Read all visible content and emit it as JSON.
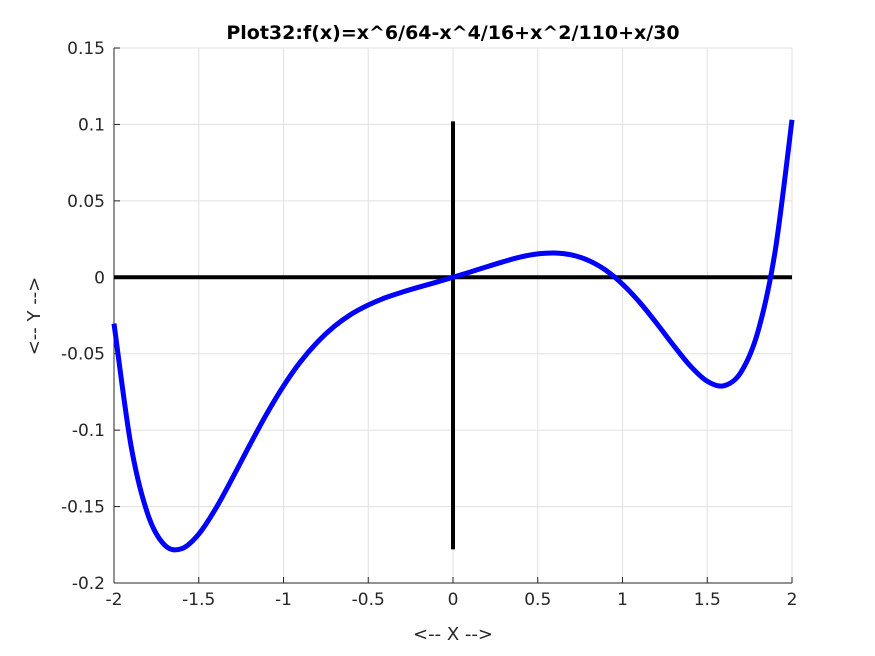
{
  "chart_data": {
    "type": "line",
    "title": "Plot32:f(x)=x^6/64-x^4/16+x^2/110+x/30",
    "xlabel": "<-- X -->",
    "ylabel": "<-- Y -->",
    "xlim": [
      -2,
      2
    ],
    "ylim": [
      -0.2,
      0.15
    ],
    "xticks": [
      -2,
      -1.5,
      -1,
      -0.5,
      0,
      0.5,
      1,
      1.5,
      2
    ],
    "xtick_labels": [
      "-2",
      "-1.5",
      "-1",
      "-0.5",
      "0",
      "0.5",
      "1",
      "1.5",
      "2"
    ],
    "yticks": [
      -0.2,
      -0.15,
      -0.1,
      -0.05,
      0,
      0.05,
      0.1,
      0.15
    ],
    "ytick_labels": [
      "-0.2",
      "-0.15",
      "-0.1",
      "-0.05",
      "0",
      "0.05",
      "0.1",
      "0.15"
    ],
    "grid": true,
    "series": [
      {
        "color": "#0000ff",
        "x": [
          -2,
          -1.9,
          -1.8,
          -1.7,
          -1.6,
          -1.5,
          -1.4,
          -1.3,
          -1.2,
          -1.1,
          -1,
          -0.9,
          -0.8,
          -0.7,
          -0.6,
          -0.5,
          -0.4,
          -0.3,
          -0.2,
          -0.1,
          0,
          0.1,
          0.2,
          0.3,
          0.4,
          0.5,
          0.6,
          0.7,
          0.8,
          0.9,
          1,
          1.1,
          1.2,
          1.3,
          1.4,
          1.5,
          1.6,
          1.7,
          1.8,
          1.9,
          2
        ],
        "y": [
          -0.0303,
          -0.1099,
          -0.1552,
          -0.1753,
          -0.1775,
          -0.168,
          -0.1513,
          -0.1311,
          -0.1099,
          -0.0895,
          -0.0711,
          -0.0553,
          -0.0424,
          -0.0321,
          -0.0241,
          -0.0181,
          -0.0134,
          -0.0097,
          -0.0064,
          -0.0033,
          0,
          0.0034,
          0.0069,
          0.0103,
          0.0133,
          0.0153,
          0.0159,
          0.0146,
          0.011,
          0.0047,
          -0.0045,
          -0.0162,
          -0.0299,
          -0.0444,
          -0.058,
          -0.068,
          -0.0709,
          -0.0619,
          -0.0352,
          0.0167,
          0.103
        ]
      }
    ],
    "reference_lines": [
      {
        "orientation": "horizontal",
        "y": 0,
        "x_range": [
          -2,
          2
        ],
        "color": "#000000"
      },
      {
        "orientation": "vertical",
        "x": 0,
        "y_range": [
          -0.178,
          0.102
        ],
        "color": "#000000"
      }
    ]
  }
}
